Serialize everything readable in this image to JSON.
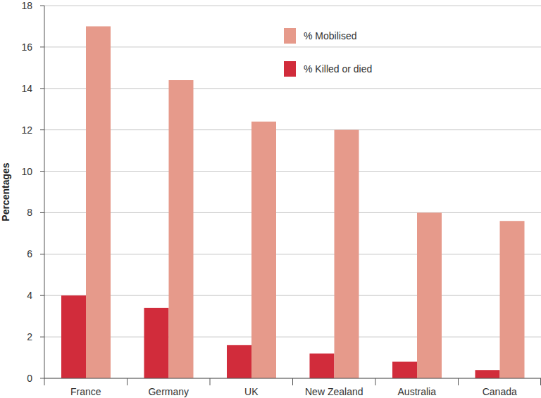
{
  "chart_data": {
    "type": "bar",
    "y_label": "Percentages",
    "categories": [
      "France",
      "Germany",
      "UK",
      "New Zealand",
      "Australia",
      "Canada"
    ],
    "series": [
      {
        "name": "% Killed or died",
        "color": "#d12c3b",
        "values": [
          4.0,
          3.4,
          1.6,
          1.2,
          0.8,
          0.4
        ]
      },
      {
        "name": "% Mobilised",
        "color": "#e69a8b",
        "values": [
          17.0,
          14.4,
          12.4,
          12.0,
          8.0,
          7.6
        ]
      }
    ],
    "ylim": [
      0,
      18
    ],
    "yticks": [
      0,
      2,
      4,
      6,
      8,
      10,
      12,
      14,
      16,
      18
    ],
    "grid": true,
    "legend": "upper right"
  }
}
